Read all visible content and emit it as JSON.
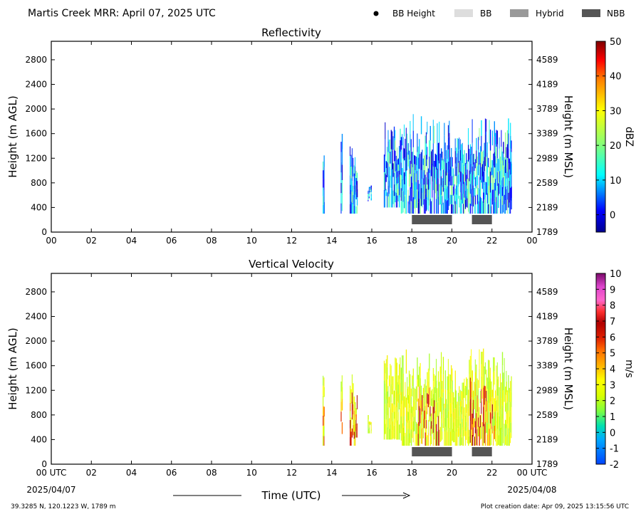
{
  "header": {
    "title": "Martis Creek MRR:  April 07, 2025 UTC",
    "legend": [
      {
        "label": "BB Height",
        "kind": "dot",
        "color": "#000000"
      },
      {
        "label": "BB",
        "kind": "swatch",
        "color": "#dddddd"
      },
      {
        "label": "Hybrid",
        "kind": "swatch",
        "color": "#999999"
      },
      {
        "label": "NBB",
        "kind": "swatch",
        "color": "#555555"
      }
    ]
  },
  "footer": {
    "location": "39.3285 N, 120.1223 W, 1789 m",
    "creation": "Plot creation date: Apr 09, 2025 13:15:56 UTC",
    "time_axis_label": "Time (UTC)",
    "start_date": "2025/04/07",
    "end_date": "2025/04/08"
  },
  "chart_data": [
    {
      "type": "heatmap",
      "title": "Reflectivity",
      "ylabel": "Height (m AGL)",
      "y2label": "Height (m MSL)",
      "xlim": [
        0,
        24
      ],
      "ylim": [
        0,
        3100
      ],
      "x_ticks": [
        "00",
        "02",
        "04",
        "06",
        "08",
        "10",
        "12",
        "14",
        "16",
        "18",
        "20",
        "22",
        "00"
      ],
      "y_ticks": [
        0,
        400,
        800,
        1200,
        1600,
        2000,
        2400,
        2800
      ],
      "y2_ticks": [
        "1789",
        "2189",
        "2589",
        "2989",
        "3389",
        "3789",
        "4189",
        "4589"
      ],
      "colorbar": {
        "label": "dBZ",
        "min": -5,
        "max": 50,
        "ticks": [
          0,
          10,
          20,
          30,
          40,
          50
        ]
      },
      "nbb_periods": [
        [
          18.0,
          20.0
        ],
        [
          21.0,
          22.0
        ]
      ],
      "echo_columns": [
        {
          "start": 13.55,
          "end": 13.65,
          "bottom": 300,
          "top": 1500
        },
        {
          "start": 14.45,
          "end": 14.55,
          "bottom": 300,
          "top": 1600
        },
        {
          "start": 14.9,
          "end": 15.3,
          "bottom": 300,
          "top": 1500
        },
        {
          "start": 15.8,
          "end": 16.0,
          "bottom": 500,
          "top": 800
        },
        {
          "start": 16.6,
          "end": 17.4,
          "bottom": 400,
          "top": 1800
        },
        {
          "start": 17.4,
          "end": 18.5,
          "bottom": 300,
          "top": 1950
        },
        {
          "start": 18.5,
          "end": 20.0,
          "bottom": 300,
          "top": 1850
        },
        {
          "start": 20.0,
          "end": 20.8,
          "bottom": 300,
          "top": 1600
        },
        {
          "start": 20.8,
          "end": 21.8,
          "bottom": 300,
          "top": 1900
        },
        {
          "start": 21.8,
          "end": 23.0,
          "bottom": 300,
          "top": 1850
        }
      ]
    },
    {
      "type": "heatmap",
      "title": "Vertical Velocity",
      "ylabel": "Height (m AGL)",
      "y2label": "Height (m MSL)",
      "xlim": [
        0,
        24
      ],
      "ylim": [
        0,
        3100
      ],
      "x_ticks": [
        "00 UTC",
        "02",
        "04",
        "06",
        "08",
        "10",
        "12",
        "14",
        "16",
        "18",
        "20",
        "22",
        "00 UTC"
      ],
      "y_ticks": [
        0,
        400,
        800,
        1200,
        1600,
        2000,
        2400,
        2800
      ],
      "y2_ticks": [
        "1789",
        "2189",
        "2589",
        "2989",
        "3389",
        "3789",
        "4189",
        "4589"
      ],
      "colorbar": {
        "label": "m/s",
        "min": -2,
        "max": 10,
        "ticks": [
          -2,
          -1,
          0,
          1,
          2,
          3,
          4,
          5,
          6,
          7,
          8,
          9,
          10
        ]
      },
      "nbb_periods": [
        [
          18.0,
          20.0
        ],
        [
          21.0,
          22.0
        ]
      ],
      "echo_columns": [
        {
          "start": 13.55,
          "end": 13.65,
          "bottom": 300,
          "top": 1500
        },
        {
          "start": 14.45,
          "end": 14.55,
          "bottom": 300,
          "top": 1600
        },
        {
          "start": 14.9,
          "end": 15.3,
          "bottom": 300,
          "top": 1500
        },
        {
          "start": 15.8,
          "end": 16.0,
          "bottom": 500,
          "top": 800
        },
        {
          "start": 16.6,
          "end": 17.4,
          "bottom": 400,
          "top": 1800
        },
        {
          "start": 17.4,
          "end": 18.5,
          "bottom": 300,
          "top": 1950
        },
        {
          "start": 18.5,
          "end": 20.0,
          "bottom": 300,
          "top": 1850
        },
        {
          "start": 20.0,
          "end": 20.8,
          "bottom": 300,
          "top": 1600
        },
        {
          "start": 20.8,
          "end": 21.8,
          "bottom": 300,
          "top": 1900
        },
        {
          "start": 21.8,
          "end": 23.0,
          "bottom": 300,
          "top": 1850
        }
      ]
    }
  ]
}
